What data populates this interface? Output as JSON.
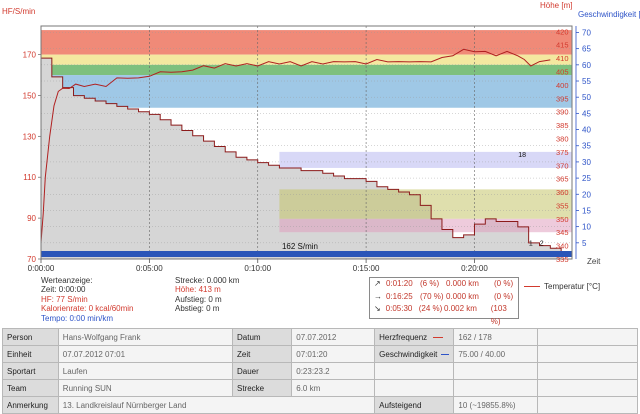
{
  "chart_data": {
    "type": "line",
    "title": "",
    "xlabel": "",
    "x_ticks": [
      "0:00:00",
      "0:05:00",
      "0:10:00",
      "0:15:00",
      "0:20:00"
    ],
    "x_tick_minutes": [
      0,
      5,
      10,
      15,
      20
    ],
    "x_axis_label_right": "Zeit",
    "xlim_minutes": [
      0,
      24.5
    ],
    "left_axis": {
      "label": "HF/S/min",
      "ticks": [
        70,
        90,
        110,
        130,
        150,
        170
      ],
      "range": [
        70,
        184
      ],
      "color": "#d23a2e"
    },
    "right_axis_altitude": {
      "label": "Höhe [m]",
      "ticks": [
        335,
        340,
        345,
        350,
        355,
        360,
        365,
        370,
        375,
        380,
        385,
        390,
        395,
        400,
        405,
        410,
        415,
        420
      ],
      "range": [
        335,
        422
      ],
      "color": "#d23a2e"
    },
    "right_axis_speed": {
      "label": "Geschwindigkeit [k",
      "ticks": [
        5,
        10,
        15,
        20,
        25,
        30,
        35,
        40,
        45,
        50,
        55,
        60,
        65,
        70
      ],
      "range": [
        0,
        72
      ],
      "color": "#2e54c8"
    },
    "zones": [
      {
        "from": 170,
        "to": 182,
        "color": "#f08a78"
      },
      {
        "from": 165,
        "to": 170,
        "color": "#f4e8a0"
      },
      {
        "from": 160,
        "to": 165,
        "color": "#7ec07e"
      },
      {
        "from": 144,
        "to": 160,
        "color": "#9fc8e6"
      }
    ],
    "series": [
      {
        "kind": "heart_rate",
        "color": "#b02020",
        "x": [
          0,
          0.1,
          0.2,
          0.4,
          0.6,
          0.8,
          1.0,
          1.3,
          1.6,
          2.0,
          2.5,
          3.0,
          3.5,
          4.0,
          4.5,
          5.0,
          5.5,
          6.0,
          6.5,
          7.0,
          7.5,
          8.0,
          8.5,
          9.0,
          9.5,
          10.0,
          10.5,
          11.0,
          11.5,
          12.0,
          12.5,
          13.0,
          13.5,
          14.0,
          14.5,
          15.0,
          15.5,
          16.0,
          16.5,
          17.0,
          17.5,
          18.0,
          18.5,
          19.0,
          19.5,
          20.0,
          20.5,
          21.0,
          21.5,
          22.0,
          22.3,
          22.6,
          23.0,
          23.5
        ],
        "y": [
          78,
          92,
          110,
          130,
          145,
          152,
          153,
          154,
          155,
          155,
          155,
          155,
          158,
          159,
          158,
          160,
          161,
          162,
          161,
          163,
          164,
          164,
          165,
          165,
          165,
          165,
          166,
          166,
          166,
          165,
          166,
          166,
          166,
          167,
          166,
          166,
          167,
          167,
          166,
          167,
          166,
          167,
          168,
          170,
          172,
          172,
          171,
          170,
          171,
          170,
          167,
          165,
          166,
          168
        ]
      },
      {
        "kind": "altitude",
        "color": "#8b1a1a",
        "fill": "#d6d6d6",
        "x": [
          0,
          0.5,
          1.0,
          1.5,
          2.0,
          2.5,
          3.0,
          3.5,
          4.0,
          4.5,
          5.0,
          5.5,
          6.0,
          6.5,
          7.0,
          7.5,
          8.0,
          8.5,
          9.0,
          9.5,
          10.0,
          10.5,
          11.0,
          11.5,
          12.0,
          12.5,
          13.0,
          13.5,
          14.0,
          14.5,
          15.0,
          15.5,
          16.0,
          16.5,
          17.0,
          17.5,
          18.0,
          18.5,
          19.0,
          19.5,
          20.0,
          20.5,
          21.0,
          21.5,
          22.0,
          22.5,
          23.0,
          23.5,
          24.0
        ],
        "y": [
          410,
          403,
          399,
          396,
          395,
          394,
          393,
          392,
          391,
          390,
          389,
          387,
          385,
          383,
          381,
          379,
          377,
          375,
          373,
          372,
          371,
          370,
          369,
          369,
          368,
          368,
          367,
          366,
          365,
          365,
          364,
          362,
          361,
          360,
          359,
          355,
          350,
          346,
          343,
          344,
          348,
          350,
          349,
          349,
          347,
          341,
          340,
          339,
          338
        ]
      }
    ],
    "annotation_bottom": "162 S/min",
    "markers": [
      {
        "text": "18",
        "x": 22.2,
        "alt": 373
      },
      {
        "text": "1",
        "x": 22.6,
        "alt": 340
      },
      {
        "text": "2",
        "x": 23.1,
        "alt": 340
      }
    ]
  },
  "readout": {
    "title": "Werteanzeige:",
    "zeit": "Zeit: 0:00:00",
    "hf": "HF: 77 S/min",
    "kalorien": "Kalorienrate: 0 kcal/60min",
    "tempo": "Tempo: 0:00 min/km",
    "strecke": "Strecke: 0.000 km",
    "hoehe": "Höhe: 413 m",
    "aufstieg": "Aufstieg: 0 m",
    "abstieg": "Abstieg: 0 m"
  },
  "splits": [
    {
      "arrow": "↗",
      "time": "0:01:20",
      "pct": "(6 %)",
      "dist": "0.000 km",
      "dpct": "(0 %)"
    },
    {
      "arrow": "→",
      "time": "0:16:25",
      "pct": "(70 %)",
      "dist": "0.000 km",
      "dpct": "(0 %)"
    },
    {
      "arrow": "↘",
      "time": "0:05:30",
      "pct": "(24 %)",
      "dist": "0.002 km",
      "dpct": "(103 %)"
    }
  ],
  "temp_legend": "Temperatur [°C]",
  "info": {
    "person_k": "Person",
    "person_v": "Hans-Wolfgang Frank",
    "datum_k": "Datum",
    "datum_v": "07.07.2012",
    "hf_k": "Herzfrequenz",
    "hf_v": "162 / 178",
    "einheit_k": "Einheit",
    "einheit_v": "07.07.2012 07:01",
    "zeit_k": "Zeit",
    "zeit_v": "07:01:20",
    "geschw_k": "Geschwindigkeit",
    "geschw_v": "75.00 / 40.00",
    "sportart_k": "Sportart",
    "sportart_v": "Laufen",
    "dauer_k": "Dauer",
    "dauer_v": "0:23:23.2",
    "team_k": "Team",
    "team_v": "Running SUN",
    "strecke_k": "Strecke",
    "strecke_v": "6.0 km",
    "anmerkung_k": "Anmerkung",
    "anmerkung_v": "13. Landkreislauf Nürnberger Land",
    "aufsteigend_k": "Aufsteigend",
    "aufsteigend_v": "10 (~19855.8%)",
    "hf_color": "#d23a2e",
    "geschw_color": "#2e54c8"
  }
}
